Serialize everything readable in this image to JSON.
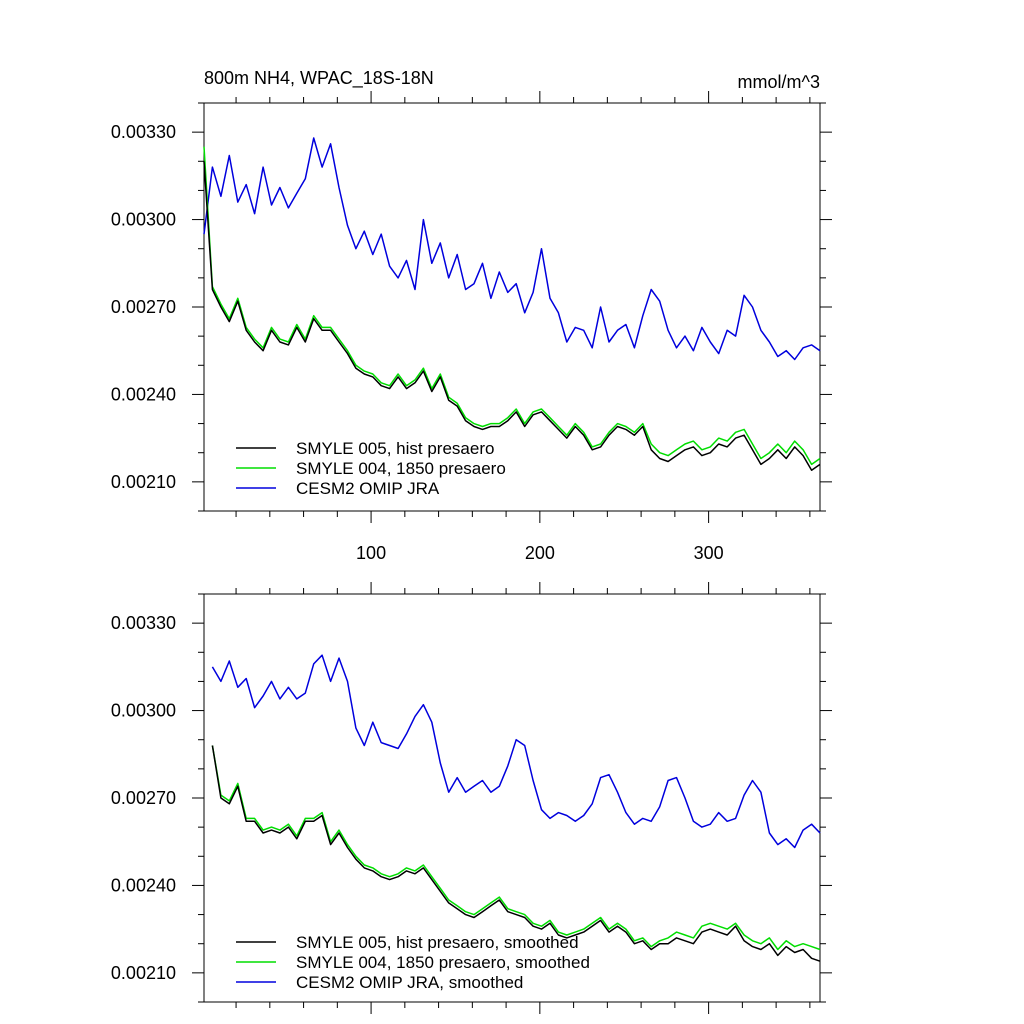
{
  "chart_data": [
    {
      "type": "line",
      "title": "800m NH4, WPAC_18S-18N",
      "units": "mmol/m^3",
      "xlabel": "",
      "ylabel": "",
      "xlim": [
        1,
        366
      ],
      "ylim": [
        0.002,
        0.0034
      ],
      "x_ticks": [
        100,
        200,
        300
      ],
      "y_ticks": [
        "0.00330",
        "0.00300",
        "0.00270",
        "0.00240",
        "0.00210"
      ],
      "y_tick_values": [
        0.0033,
        0.003,
        0.0027,
        0.0024,
        0.0021
      ],
      "grid": false,
      "legend_position": "bottom-left",
      "x": [
        1,
        6,
        11,
        16,
        21,
        26,
        31,
        36,
        41,
        46,
        51,
        56,
        61,
        66,
        71,
        76,
        81,
        86,
        91,
        96,
        101,
        106,
        111,
        116,
        121,
        126,
        131,
        136,
        141,
        146,
        151,
        156,
        161,
        166,
        171,
        176,
        181,
        186,
        191,
        196,
        201,
        206,
        211,
        216,
        221,
        226,
        231,
        236,
        241,
        246,
        251,
        256,
        261,
        266,
        271,
        276,
        281,
        286,
        291,
        296,
        301,
        306,
        311,
        316,
        321,
        326,
        331,
        336,
        341,
        346,
        351,
        356,
        361,
        366
      ],
      "series": [
        {
          "name": "SMYLE 005, hist presaero",
          "color": "#000000",
          "values": [
            0.0032,
            0.00276,
            0.0027,
            0.00265,
            0.00272,
            0.00262,
            0.00258,
            0.00255,
            0.00262,
            0.00258,
            0.00257,
            0.00263,
            0.00258,
            0.00266,
            0.00262,
            0.00262,
            0.00258,
            0.00254,
            0.00249,
            0.00247,
            0.00246,
            0.00243,
            0.00242,
            0.00246,
            0.00242,
            0.00244,
            0.00248,
            0.00241,
            0.00246,
            0.00238,
            0.00236,
            0.00231,
            0.00229,
            0.00228,
            0.00229,
            0.00229,
            0.00231,
            0.00234,
            0.00229,
            0.00233,
            0.00234,
            0.00231,
            0.00228,
            0.00225,
            0.00229,
            0.00226,
            0.00221,
            0.00222,
            0.00226,
            0.00229,
            0.00228,
            0.00226,
            0.00229,
            0.00221,
            0.00218,
            0.00217,
            0.00219,
            0.00221,
            0.00222,
            0.00219,
            0.0022,
            0.00223,
            0.00222,
            0.00225,
            0.00226,
            0.00221,
            0.00216,
            0.00218,
            0.00221,
            0.00218,
            0.00222,
            0.00219,
            0.00214,
            0.00216
          ]
        },
        {
          "name": "SMYLE 004, 1850 presaero",
          "color": "#00dd00",
          "values": [
            0.00325,
            0.00277,
            0.00271,
            0.00266,
            0.00273,
            0.00263,
            0.00259,
            0.00256,
            0.00263,
            0.00259,
            0.00258,
            0.00264,
            0.00259,
            0.00267,
            0.00263,
            0.00263,
            0.00259,
            0.00255,
            0.0025,
            0.00248,
            0.00247,
            0.00244,
            0.00243,
            0.00247,
            0.00243,
            0.00245,
            0.00249,
            0.00242,
            0.00247,
            0.00239,
            0.00237,
            0.00232,
            0.0023,
            0.00229,
            0.0023,
            0.0023,
            0.00232,
            0.00235,
            0.0023,
            0.00234,
            0.00235,
            0.00232,
            0.00229,
            0.00226,
            0.0023,
            0.00227,
            0.00222,
            0.00223,
            0.00227,
            0.0023,
            0.00229,
            0.00227,
            0.0023,
            0.00223,
            0.0022,
            0.00219,
            0.00221,
            0.00223,
            0.00224,
            0.00221,
            0.00222,
            0.00225,
            0.00224,
            0.00227,
            0.00228,
            0.00223,
            0.00218,
            0.0022,
            0.00223,
            0.0022,
            0.00224,
            0.00221,
            0.00216,
            0.00218
          ]
        },
        {
          "name": "CESM2 OMIP JRA",
          "color": "#0000dd",
          "values": [
            0.00295,
            0.00318,
            0.00308,
            0.00322,
            0.00306,
            0.00312,
            0.00302,
            0.00318,
            0.00305,
            0.00311,
            0.00304,
            0.00309,
            0.00314,
            0.00328,
            0.00318,
            0.00326,
            0.00311,
            0.00298,
            0.0029,
            0.00296,
            0.00288,
            0.00295,
            0.00284,
            0.0028,
            0.00286,
            0.00276,
            0.003,
            0.00285,
            0.00292,
            0.0028,
            0.00288,
            0.00276,
            0.00278,
            0.00285,
            0.00273,
            0.00282,
            0.00275,
            0.00278,
            0.00268,
            0.00275,
            0.0029,
            0.00273,
            0.00268,
            0.00258,
            0.00263,
            0.00262,
            0.00256,
            0.0027,
            0.00258,
            0.00262,
            0.00264,
            0.00256,
            0.00267,
            0.00276,
            0.00272,
            0.00262,
            0.00256,
            0.0026,
            0.00255,
            0.00263,
            0.00258,
            0.00254,
            0.00262,
            0.0026,
            0.00274,
            0.0027,
            0.00262,
            0.00258,
            0.00253,
            0.00255,
            0.00252,
            0.00256,
            0.00257,
            0.00255
          ]
        }
      ]
    },
    {
      "type": "line",
      "title": "",
      "xlabel": "",
      "ylabel": "",
      "xlim": [
        1,
        366
      ],
      "ylim": [
        0.002,
        0.0034
      ],
      "y_ticks": [
        "0.00330",
        "0.00300",
        "0.00270",
        "0.00240",
        "0.00210"
      ],
      "y_tick_values": [
        0.0033,
        0.003,
        0.0027,
        0.0024,
        0.0021
      ],
      "grid": false,
      "legend_position": "bottom-left",
      "x": [
        6,
        11,
        16,
        21,
        26,
        31,
        36,
        41,
        46,
        51,
        56,
        61,
        66,
        71,
        76,
        81,
        86,
        91,
        96,
        101,
        106,
        111,
        116,
        121,
        126,
        131,
        136,
        141,
        146,
        151,
        156,
        161,
        166,
        171,
        176,
        181,
        186,
        191,
        196,
        201,
        206,
        211,
        216,
        221,
        226,
        231,
        236,
        241,
        246,
        251,
        256,
        261,
        266,
        271,
        276,
        281,
        286,
        291,
        296,
        301,
        306,
        311,
        316,
        321,
        326,
        331,
        336,
        341,
        346,
        351,
        356,
        361,
        366
      ],
      "series": [
        {
          "name": "SMYLE 005, hist presaero, smoothed",
          "color": "#000000",
          "values": [
            0.00288,
            0.0027,
            0.00268,
            0.00274,
            0.00262,
            0.00262,
            0.00258,
            0.00259,
            0.00258,
            0.0026,
            0.00256,
            0.00262,
            0.00262,
            0.00264,
            0.00254,
            0.00258,
            0.00253,
            0.00249,
            0.00246,
            0.00245,
            0.00243,
            0.00242,
            0.00243,
            0.00245,
            0.00244,
            0.00246,
            0.00242,
            0.00238,
            0.00234,
            0.00232,
            0.0023,
            0.00229,
            0.00231,
            0.00233,
            0.00235,
            0.00231,
            0.0023,
            0.00229,
            0.00226,
            0.00225,
            0.00227,
            0.00223,
            0.00222,
            0.00223,
            0.00224,
            0.00226,
            0.00228,
            0.00224,
            0.00226,
            0.00224,
            0.0022,
            0.00221,
            0.00218,
            0.0022,
            0.0022,
            0.00222,
            0.00221,
            0.0022,
            0.00224,
            0.00225,
            0.00224,
            0.00223,
            0.00226,
            0.00221,
            0.00219,
            0.00218,
            0.0022,
            0.00216,
            0.00219,
            0.00217,
            0.00218,
            0.00215,
            0.00214
          ]
        },
        {
          "name": "SMYLE 004, 1850 presaero, smoothed",
          "color": "#00dd00",
          "values": [
            0.00288,
            0.00271,
            0.00269,
            0.00275,
            0.00263,
            0.00263,
            0.00259,
            0.0026,
            0.00259,
            0.00261,
            0.00257,
            0.00263,
            0.00263,
            0.00265,
            0.00255,
            0.00259,
            0.00254,
            0.0025,
            0.00247,
            0.00246,
            0.00244,
            0.00243,
            0.00244,
            0.00246,
            0.00245,
            0.00247,
            0.00243,
            0.00239,
            0.00235,
            0.00233,
            0.00231,
            0.0023,
            0.00232,
            0.00234,
            0.00236,
            0.00232,
            0.00231,
            0.0023,
            0.00227,
            0.00226,
            0.00228,
            0.00224,
            0.00223,
            0.00224,
            0.00225,
            0.00227,
            0.00229,
            0.00225,
            0.00227,
            0.00225,
            0.00221,
            0.00222,
            0.00219,
            0.00221,
            0.00222,
            0.00224,
            0.00223,
            0.00222,
            0.00226,
            0.00227,
            0.00226,
            0.00225,
            0.00227,
            0.00223,
            0.00221,
            0.0022,
            0.00222,
            0.00218,
            0.00221,
            0.00219,
            0.0022,
            0.00219,
            0.00218
          ]
        },
        {
          "name": "CESM2 OMIP JRA, smoothed",
          "color": "#0000dd",
          "values": [
            0.00315,
            0.0031,
            0.00317,
            0.00308,
            0.00311,
            0.00301,
            0.00305,
            0.0031,
            0.00304,
            0.00308,
            0.00304,
            0.00306,
            0.00316,
            0.00319,
            0.0031,
            0.00318,
            0.0031,
            0.00294,
            0.00288,
            0.00296,
            0.00289,
            0.00288,
            0.00287,
            0.00292,
            0.00298,
            0.00302,
            0.00296,
            0.00282,
            0.00272,
            0.00277,
            0.00272,
            0.00274,
            0.00276,
            0.00272,
            0.00274,
            0.00281,
            0.0029,
            0.00288,
            0.00276,
            0.00266,
            0.00263,
            0.00265,
            0.00264,
            0.00262,
            0.00264,
            0.00268,
            0.00277,
            0.00278,
            0.00272,
            0.00265,
            0.00261,
            0.00263,
            0.00262,
            0.00267,
            0.00276,
            0.00277,
            0.0027,
            0.00262,
            0.0026,
            0.00261,
            0.00265,
            0.00262,
            0.00263,
            0.00271,
            0.00276,
            0.00272,
            0.00258,
            0.00254,
            0.00256,
            0.00253,
            0.00259,
            0.00261,
            0.00258
          ]
        }
      ]
    }
  ]
}
